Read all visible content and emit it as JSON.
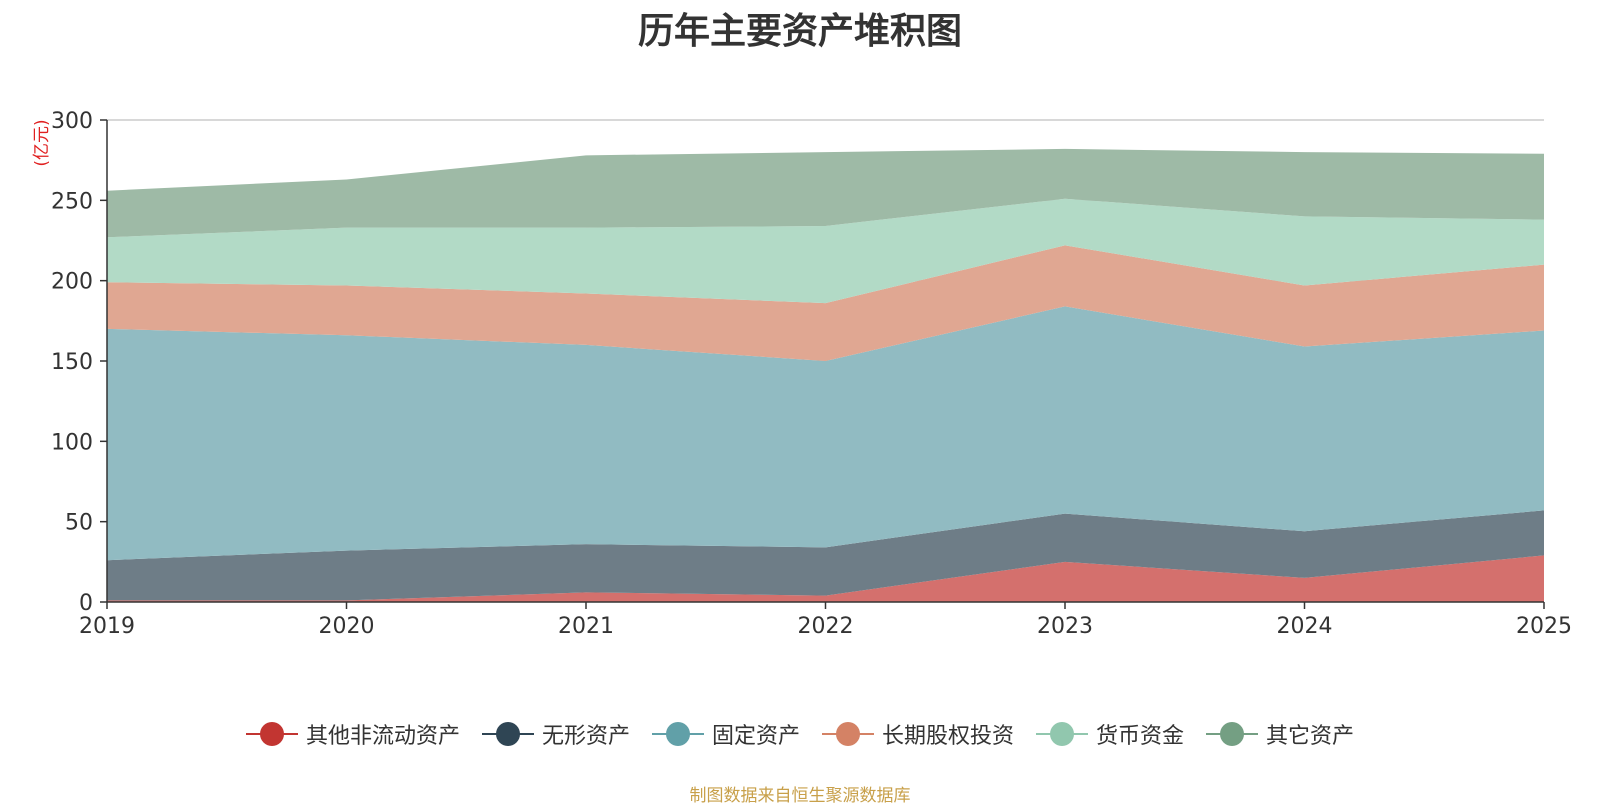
{
  "chart_data": {
    "type": "area",
    "stacked": true,
    "title": "历年主要资产堆积图",
    "ylabel": "(亿元)",
    "xlabel": "",
    "x": [
      "2019",
      "2020",
      "2021",
      "2022",
      "2023",
      "2024",
      "2025"
    ],
    "ylim": [
      0,
      300
    ],
    "yticks": [
      0,
      50,
      100,
      150,
      200,
      250,
      300
    ],
    "grid": true,
    "legend_position": "bottom",
    "series": [
      {
        "name": "其他非流动资产",
        "color": "#c23531",
        "fill": "#d4706d",
        "values": [
          1,
          1,
          6,
          4,
          25,
          15,
          29
        ]
      },
      {
        "name": "无形资产",
        "color": "#2f4554",
        "fill": "#6e7d87",
        "values": [
          25,
          31,
          30,
          30,
          30,
          29,
          28
        ]
      },
      {
        "name": "固定资产",
        "color": "#61a0a8",
        "fill": "#91bbc2",
        "values": [
          144,
          134,
          124,
          116,
          129,
          115,
          112
        ]
      },
      {
        "name": "长期股权投资",
        "color": "#d48265",
        "fill": "#e0a792",
        "values": [
          29,
          31,
          32,
          36,
          38,
          38,
          41
        ]
      },
      {
        "name": "货币资金",
        "color": "#91c7ae",
        "fill": "#b2dac6",
        "values": [
          28,
          36,
          41,
          48,
          29,
          43,
          28
        ]
      },
      {
        "name": "其它资产",
        "color": "#749f83",
        "fill": "#9ebaa6",
        "values": [
          29,
          30,
          45,
          46,
          31,
          40,
          41
        ]
      }
    ]
  },
  "footer": {
    "source": "制图数据来自恒生聚源数据库"
  }
}
